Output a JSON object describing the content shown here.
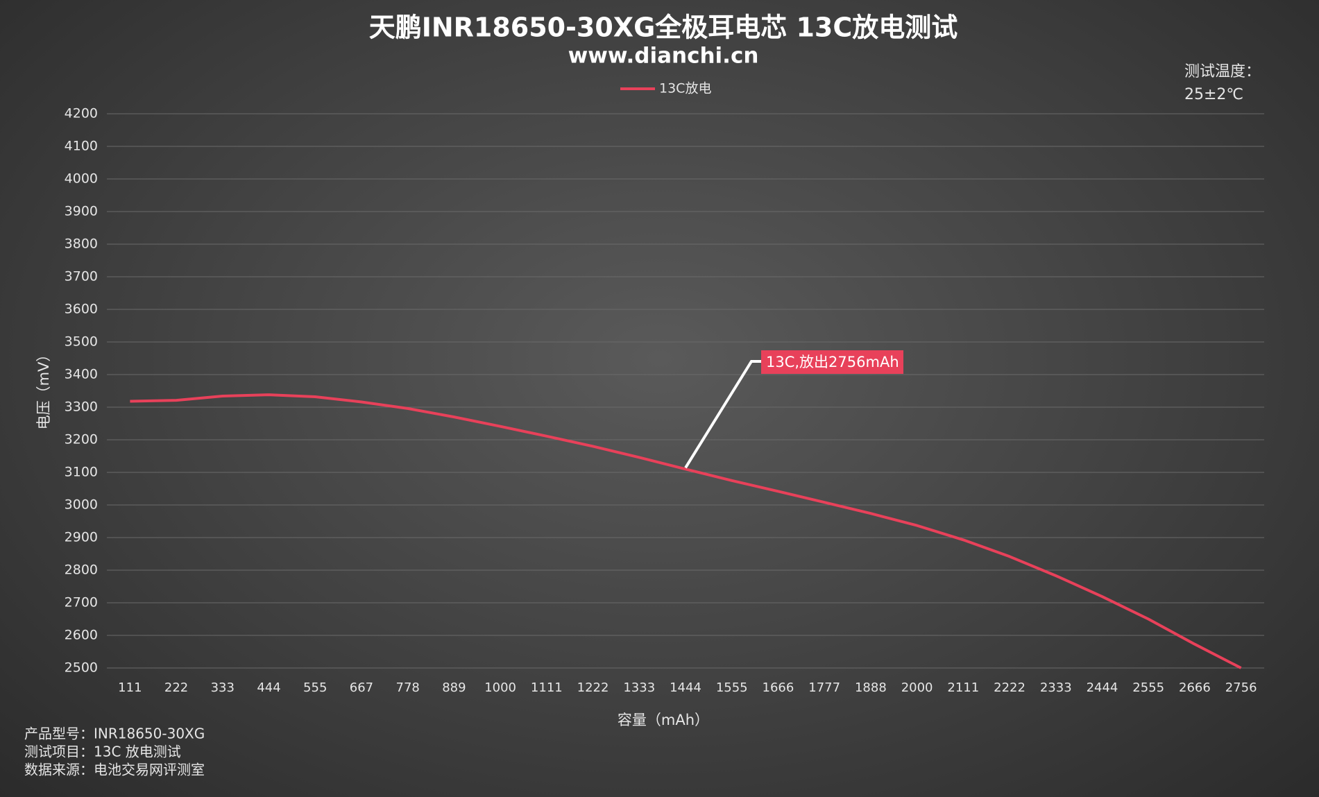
{
  "chart_data": {
    "type": "line",
    "title": "天鹏INR18650-30XG全极耳电芯 13C放电测试",
    "subtitle": "www.dianchi.cn",
    "x_label": "容量（mAh）",
    "y_label": "电压（mV）",
    "categories": [
      111,
      222,
      333,
      444,
      555,
      667,
      778,
      889,
      1000,
      1111,
      1222,
      1333,
      1444,
      1555,
      1666,
      1777,
      1888,
      2000,
      2111,
      2222,
      2333,
      2444,
      2555,
      2666,
      2756
    ],
    "series": [
      {
        "name": "13C放电",
        "color": "#e8415a",
        "values": [
          3318,
          3321,
          3334,
          3338,
          3332,
          3316,
          3296,
          3270,
          3241,
          3211,
          3180,
          3146,
          3110,
          3075,
          3042,
          3008,
          2974,
          2937,
          2893,
          2842,
          2783,
          2719,
          2650,
          2573,
          2500
        ]
      }
    ],
    "ylim": [
      2500,
      4200
    ],
    "yticks": [
      2500,
      2600,
      2700,
      2800,
      2900,
      3000,
      3100,
      3200,
      3300,
      3400,
      3500,
      3600,
      3700,
      3800,
      3900,
      4000,
      4100,
      4200
    ],
    "grid": true,
    "legend": "top",
    "annotation": "13C,放出2756mAh",
    "temperature_note": [
      "测试温度：",
      "25±2℃"
    ],
    "notes": [
      "产品型号：INR18650-30XG",
      "测试项目：13C 放电测试",
      "数据来源：电池交易网评测室"
    ]
  }
}
